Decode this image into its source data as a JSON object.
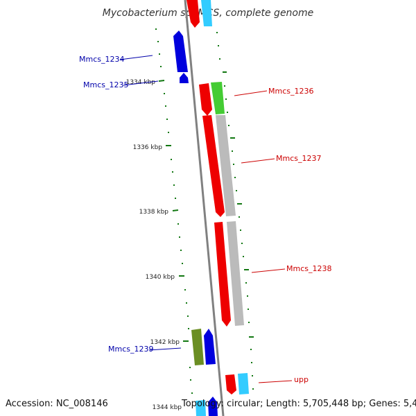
{
  "title": "Mycobacterium sp. MCS, complete genome",
  "footer": {
    "accession": "Accession: NC_008146",
    "topology": "Topology: circular; Length: 5,705,448 bp; Genes: 5,451"
  },
  "ticks": [
    "1334 kbp",
    "1336 kbp",
    "1338 kbp",
    "1340 kbp",
    "1342 kbp",
    "1344 kbp"
  ],
  "genes": {
    "mmcs_1234": "Mmcs_1234",
    "mmcs_1235": "Mmcs_1235",
    "mmcs_1236": "Mmcs_1236",
    "mmcs_1237": "Mmcs_1237",
    "mmcs_1238": "Mmcs_1238",
    "mmcs_1239": "Mmcs_1239",
    "upp": "upp"
  },
  "colors": {
    "reverse_strand_gene": "#0000dd",
    "forward_strand_gene": "#ee0000",
    "backbone": "#808080",
    "tick": "#117711",
    "label_forward": "#cc0000",
    "label_reverse": "#0000aa",
    "cyan_feature": "#33ccff",
    "green_feature": "#44cc33",
    "gray_feature": "#bbbbbb",
    "olive_feature": "#6b8e23"
  }
}
